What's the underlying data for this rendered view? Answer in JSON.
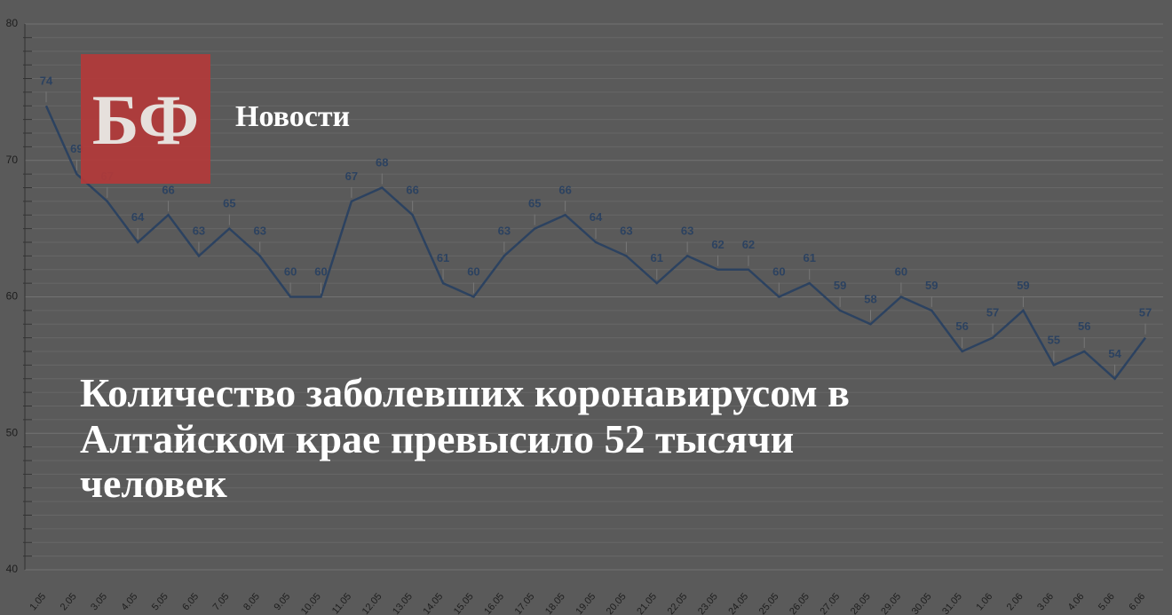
{
  "brand": {
    "logo": "БФ",
    "section": "Новости"
  },
  "headline": [
    "Количество заболевших коронавирусом в",
    "Алтайском крае превысило 52 тысячи",
    "человек"
  ],
  "chart_data": {
    "type": "line",
    "categories": [
      "1.05",
      "2.05",
      "3.05",
      "4.05",
      "5.05",
      "6.05",
      "7.05",
      "8.05",
      "9.05",
      "10.05",
      "11.05",
      "12.05",
      "13.05",
      "14.05",
      "15.05",
      "16.05",
      "17.05",
      "18.05",
      "19.05",
      "20.05",
      "21.05",
      "22.05",
      "23.05",
      "24.05",
      "25.05",
      "26.05",
      "27.05",
      "28.05",
      "29.05",
      "30.05",
      "31.05",
      "1.06",
      "2.06",
      "3.06",
      "4.06",
      "5.06",
      "6.06"
    ],
    "values": [
      74,
      69,
      67,
      64,
      66,
      63,
      65,
      63,
      60,
      60,
      67,
      68,
      66,
      61,
      60,
      63,
      65,
      66,
      64,
      63,
      61,
      63,
      62,
      62,
      60,
      61,
      59,
      58,
      60,
      59,
      56,
      57,
      59,
      55,
      56,
      54,
      57
    ],
    "color": "#2c4260",
    "ylim": [
      40,
      80
    ],
    "yticks": [
      40,
      50,
      60,
      70,
      80
    ],
    "grid": true
  }
}
